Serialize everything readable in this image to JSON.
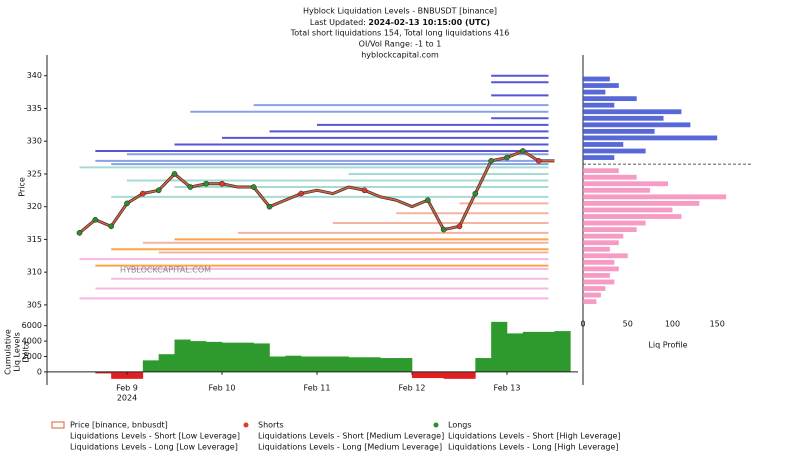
{
  "chart_data": {
    "type": "line",
    "title": "Hyblock Liquidation Levels - BNBUSDT [binance]",
    "last_updated_label": "Last Updated:",
    "last_updated": "2024-02-13 10:15:00 (UTC)",
    "subtitle_totals": "Total short liquidations 154, Total long liquidations 416",
    "subtitle_range": "OI/Vol Range: -1 to 1",
    "subtitle_site": "hyblockcapital.com",
    "watermark": "HYBLOCKCAPITAL.COM",
    "ylabel": "Price",
    "categories": [
      null,
      null,
      null,
      "Feb 9",
      null,
      null,
      null,
      null,
      null,
      "Feb 10",
      null,
      null,
      null,
      null,
      null,
      "Feb 11",
      null,
      null,
      null,
      null,
      null,
      "Feb 12",
      null,
      null,
      null,
      null,
      null,
      "Feb 13",
      null,
      null,
      null
    ],
    "year_label": "2024",
    "ylim": [
      303,
      342.4
    ],
    "yticks": [
      305,
      310,
      315,
      320,
      325,
      330,
      335,
      340
    ],
    "series": [
      {
        "name": "Price [binance, bnbusdt]",
        "color": "#d9603b",
        "values": [
          316,
          318,
          317,
          320.5,
          322,
          322.5,
          325,
          323,
          323.5,
          323.5,
          323,
          323,
          320,
          321,
          322,
          322.5,
          322,
          323,
          322.5,
          321.5,
          321,
          320,
          321,
          316.5,
          317,
          322,
          327,
          327.5,
          328.5,
          327,
          327
        ]
      }
    ],
    "shorts": {
      "name": "Shorts",
      "color": "#e0382b",
      "at": [
        4,
        9,
        14,
        18,
        24,
        29
      ]
    },
    "longs": {
      "name": "Longs",
      "color": "#2e8b2e",
      "at": [
        0,
        1,
        2,
        3,
        5,
        6,
        7,
        8,
        11,
        12,
        22,
        23,
        25,
        26,
        27,
        28
      ]
    },
    "liquidation_levels": [
      {
        "name": "Liquidations Levels - Short [Low Leverage]",
        "color": "#8fd3c8",
        "prices": [
          321.5,
          323,
          324,
          325,
          326
        ],
        "starts": [
          2,
          6,
          3,
          17,
          0
        ]
      },
      {
        "name": "Liquidations Levels - Long [Low Leverage]",
        "color": "#f4a6dc",
        "prices": [
          306,
          307.5,
          309,
          310.5,
          312
        ],
        "starts": [
          0,
          1,
          2,
          3,
          0
        ]
      },
      {
        "name": "Liquidations Levels - Short [Medium Leverage]",
        "color": "#6a8ae0",
        "prices": [
          326.5,
          327,
          328,
          334.5,
          335.5
        ],
        "starts": [
          2,
          1,
          3,
          7,
          11
        ]
      },
      {
        "name": "Liquidations Levels - Long [Medium Leverage]",
        "color": "#f5a08a",
        "prices": [
          313,
          314.5,
          316,
          317.5,
          319,
          320.5
        ],
        "starts": [
          5,
          4,
          10,
          16,
          20,
          24
        ]
      },
      {
        "name": "Liquidations Levels - Short [High Leverage]",
        "color": "#2b2bcc",
        "prices": [
          328.5,
          329.5,
          330.5,
          331.5,
          332.5,
          333.5,
          337,
          339,
          340
        ],
        "starts": [
          1,
          6,
          9,
          12,
          15,
          26,
          26,
          26,
          26
        ]
      },
      {
        "name": "Liquidations Levels - Long [High Leverage]",
        "color": "#ff8c1a",
        "prices": [
          311,
          313.5,
          315
        ],
        "starts": [
          1,
          2,
          6
        ]
      }
    ],
    "delta": {
      "ylabel": [
        "Cumulative",
        "Liq Levels",
        "Delta"
      ],
      "ylim": [
        -1700,
        7000
      ],
      "yticks": [
        0,
        2000,
        4000,
        6000
      ],
      "positive_color": "#2e9a2e",
      "negative_color": "#e02020",
      "values": [
        0,
        -200,
        -900,
        -900,
        1500,
        2300,
        4200,
        4000,
        3900,
        3800,
        3800,
        3700,
        2000,
        2100,
        2000,
        2000,
        2000,
        1900,
        1900,
        1800,
        1800,
        -800,
        -800,
        -900,
        -900,
        1800,
        6500,
        5000,
        5200,
        5200,
        5300
      ]
    },
    "profile": {
      "xlabel": "Liq Profile",
      "xlim": [
        0,
        190
      ],
      "xticks": [
        0,
        50,
        100,
        150
      ],
      "current_price": 326.5,
      "series": [
        {
          "color": "#3b4fd0",
          "prices": [
            339.5,
            338.5,
            337.5,
            336.5,
            335.5,
            334.5,
            333.5,
            332.5,
            331.5,
            330.5,
            329.5,
            328.5,
            327.5
          ],
          "values": [
            30,
            40,
            25,
            60,
            35,
            110,
            90,
            120,
            80,
            150,
            45,
            70,
            35
          ]
        },
        {
          "color": "#f58ab8",
          "prices": [
            325.5,
            324.5,
            323.5,
            322.5,
            321.5,
            320.5,
            319.5,
            318.5,
            317.5,
            316.5,
            315.5,
            314.5,
            313.5,
            312.5,
            311.5,
            310.5,
            309.5,
            308.5,
            307.5,
            306.5,
            305.5
          ],
          "values": [
            40,
            60,
            95,
            75,
            160,
            130,
            100,
            110,
            70,
            60,
            45,
            40,
            30,
            50,
            35,
            40,
            30,
            35,
            25,
            20,
            15
          ]
        }
      ]
    }
  }
}
